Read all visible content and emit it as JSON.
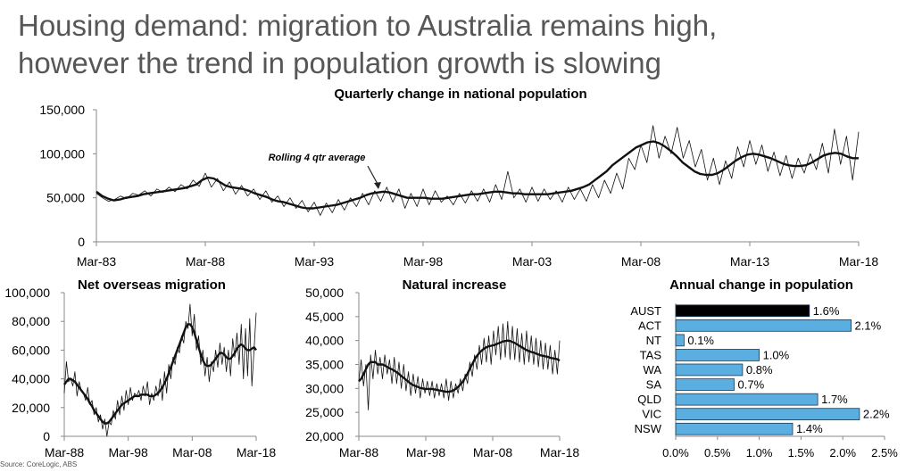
{
  "headline": {
    "line1": "Housing demand: migration to Australia remains high,",
    "line2": "however the trend in population growth is slowing"
  },
  "source": "Source:  CoreLogic, ABS",
  "chart_data": [
    {
      "type": "line",
      "title": "Quarterly change in national population",
      "annotation": "Rolling 4 qtr average",
      "x_tick_labels": [
        "Mar-83",
        "Mar-88",
        "Mar-93",
        "Mar-98",
        "Mar-03",
        "Mar-08",
        "Mar-13",
        "Mar-18"
      ],
      "y_tick_labels": [
        "0",
        "50,000",
        "100,000",
        "150,000"
      ],
      "ylim": [
        0,
        150000
      ],
      "x_range": [
        "Mar-83",
        "Mar-18"
      ],
      "series": [
        {
          "values": [
            55000,
            50000,
            46000,
            48000,
            52000,
            49000,
            55000,
            53000,
            58000,
            52000,
            60000,
            56000,
            62000,
            57000,
            65000,
            60000,
            70000,
            63000,
            78000,
            62000,
            72000,
            58000,
            68000,
            54000,
            64000,
            52000,
            60000,
            48000,
            58000,
            45000,
            52000,
            40000,
            50000,
            38000,
            47000,
            34000,
            45000,
            30000,
            44000,
            33000,
            48000,
            36000,
            50000,
            40000,
            55000,
            42000,
            58000,
            46000,
            62000,
            45000,
            60000,
            38000,
            55000,
            40000,
            60000,
            42000,
            58000,
            45000,
            52000,
            42000,
            55000,
            44000,
            58000,
            46000,
            60000,
            45000,
            65000,
            48000,
            80000,
            50000,
            60000,
            45000,
            62000,
            46000,
            60000,
            48000,
            58000,
            45000,
            62000,
            48000,
            60000,
            46000,
            65000,
            50000,
            70000,
            55000,
            78000,
            60000,
            95000,
            82000,
            110000,
            90000,
            132000,
            95000,
            120000,
            100000,
            130000,
            95000,
            115000,
            85000,
            105000,
            70000,
            95000,
            65000,
            92000,
            72000,
            108000,
            85000,
            115000,
            88000,
            110000,
            80000,
            102000,
            75000,
            98000,
            72000,
            95000,
            78000,
            100000,
            82000,
            112000,
            78000,
            128000,
            88000,
            120000,
            70000,
            125000
          ]
        },
        {
          "values": [
            57000,
            52000,
            49000,
            47000,
            48000,
            50000,
            51000,
            52000,
            54000,
            55000,
            56000,
            57000,
            58000,
            59000,
            60000,
            61000,
            63000,
            65000,
            70000,
            73000,
            72000,
            68000,
            64000,
            62000,
            61000,
            60000,
            58000,
            55000,
            53000,
            51000,
            48000,
            46000,
            45000,
            43000,
            41000,
            39000,
            38000,
            38000,
            39000,
            40000,
            41000,
            42000,
            44000,
            46000,
            48000,
            50000,
            53000,
            55000,
            56000,
            57000,
            56000,
            54000,
            52000,
            50000,
            50000,
            50000,
            50000,
            49000,
            49000,
            49000,
            50000,
            51000,
            52000,
            53000,
            54000,
            54000,
            55000,
            56000,
            57000,
            57000,
            56000,
            55000,
            55000,
            54000,
            54000,
            54000,
            54000,
            54000,
            55000,
            56000,
            57000,
            58000,
            60000,
            62000,
            65000,
            70000,
            75000,
            80000,
            87000,
            92000,
            97000,
            102000,
            107000,
            110000,
            113000,
            114000,
            112000,
            108000,
            103000,
            97000,
            90000,
            85000,
            80000,
            77000,
            76000,
            76000,
            78000,
            82000,
            87000,
            92000,
            96000,
            99000,
            100000,
            99000,
            97000,
            95000,
            92000,
            89000,
            87000,
            86000,
            86000,
            87000,
            90000,
            94000,
            98000,
            100000,
            101000,
            100000,
            97000,
            95000,
            95000
          ]
        }
      ]
    },
    {
      "type": "line",
      "title": "Net overseas migration",
      "x_tick_labels": [
        "Mar-88",
        "Mar-98",
        "Mar-08",
        "Mar-18"
      ],
      "y_tick_labels": [
        "0",
        "20,000",
        "40,000",
        "60,000",
        "80,000",
        "100,000"
      ],
      "ylim": [
        0,
        100000
      ],
      "x_range": [
        "Mar-88",
        "Mar-18"
      ],
      "series": [
        {
          "values": [
            30000,
            52000,
            38000,
            40000,
            35000,
            45000,
            28000,
            38000,
            32000,
            30000,
            25000,
            34000,
            22000,
            25000,
            15000,
            20000,
            10000,
            15000,
            5000,
            12000,
            0,
            10000,
            8000,
            18000,
            12000,
            25000,
            15000,
            28000,
            18000,
            32000,
            22000,
            34000,
            25000,
            30000,
            28000,
            32000,
            25000,
            35000,
            28000,
            38000,
            22000,
            30000,
            25000,
            35000,
            28000,
            40000,
            25000,
            45000,
            30000,
            50000,
            40000,
            55000,
            50000,
            62000,
            58000,
            70000,
            65000,
            80000,
            75000,
            92000,
            70000,
            85000,
            60000,
            70000,
            50000,
            60000,
            42000,
            55000,
            38000,
            52000,
            45000,
            60000,
            48000,
            65000,
            50000,
            62000,
            45000,
            60000,
            42000,
            68000,
            55000,
            72000,
            50000,
            78000,
            40000,
            75000,
            42000,
            82000,
            35000,
            60000,
            86000
          ]
        },
        {
          "values": [
            36000,
            38000,
            40000,
            40000,
            39000,
            38000,
            36000,
            34000,
            32000,
            30000,
            28000,
            26000,
            23000,
            21000,
            18000,
            16000,
            14000,
            12000,
            10000,
            9000,
            9000,
            10000,
            12000,
            14000,
            16000,
            18000,
            20000,
            22000,
            23000,
            24000,
            25000,
            26000,
            27000,
            28000,
            28000,
            28000,
            29000,
            29000,
            29000,
            29000,
            28000,
            28000,
            28000,
            29000,
            30000,
            32000,
            34000,
            37000,
            40000,
            44000,
            48000,
            52000,
            56000,
            60000,
            64000,
            68000,
            72000,
            76000,
            78000,
            78000,
            76000,
            72000,
            67000,
            62000,
            57000,
            53000,
            50000,
            49000,
            49000,
            50000,
            52000,
            54000,
            56000,
            58000,
            58000,
            57000,
            55000,
            54000,
            54000,
            56000,
            58000,
            61000,
            63000,
            64000,
            63000,
            61000,
            60000,
            60000,
            61000,
            62000,
            60000
          ]
        }
      ]
    },
    {
      "type": "line",
      "title": "Natural increase",
      "x_tick_labels": [
        "Mar-88",
        "Mar-98",
        "Mar-08",
        "Mar-18"
      ],
      "y_tick_labels": [
        "20,000",
        "25,000",
        "30,000",
        "35,000",
        "40,000",
        "45,000",
        "50,000"
      ],
      "ylim": [
        20000,
        50000
      ],
      "x_range": [
        "Mar-88",
        "Mar-18"
      ],
      "series": [
        {
          "values": [
            31500,
            36000,
            30500,
            35000,
            25500,
            37000,
            32000,
            38000,
            33000,
            36500,
            32000,
            37000,
            33000,
            36000,
            31000,
            36500,
            31000,
            35500,
            30000,
            35000,
            29500,
            33500,
            28500,
            33000,
            29000,
            32500,
            28000,
            32000,
            29000,
            31500,
            28500,
            31500,
            28000,
            31000,
            28500,
            31000,
            28000,
            32000,
            27500,
            31500,
            28000,
            31000,
            29000,
            32000,
            29500,
            33000,
            31000,
            35500,
            32500,
            37000,
            34000,
            39000,
            35000,
            40500,
            35500,
            41000,
            35000,
            42000,
            37000,
            43000,
            36000,
            43500,
            36500,
            44000,
            36000,
            43000,
            36000,
            42500,
            35500,
            41500,
            35000,
            42000,
            35500,
            41000,
            35000,
            40500,
            34500,
            40000,
            34000,
            39500,
            34000,
            39000,
            33000,
            38000,
            33000,
            40000
          ]
        },
        {
          "values": [
            31500,
            32000,
            33000,
            34000,
            35000,
            35500,
            35500,
            35500,
            35000,
            35000,
            35000,
            34800,
            34500,
            34200,
            34000,
            33700,
            33400,
            33000,
            32600,
            32200,
            31800,
            31400,
            31000,
            30700,
            30500,
            30300,
            30100,
            30000,
            29900,
            29900,
            29900,
            29900,
            29800,
            29700,
            29600,
            29500,
            29400,
            29300,
            29300,
            29400,
            29600,
            29900,
            30300,
            30800,
            31400,
            32200,
            33100,
            34100,
            35100,
            36000,
            36800,
            37400,
            37900,
            38300,
            38600,
            38800,
            38900,
            39000,
            39200,
            39400,
            39600,
            39800,
            39900,
            40000,
            39900,
            39700,
            39500,
            39200,
            38900,
            38600,
            38300,
            38000,
            37800,
            37600,
            37500,
            37300,
            37100,
            36900,
            36800,
            36700,
            36600,
            36400,
            36300,
            36200,
            36100,
            35800
          ]
        }
      ]
    },
    {
      "type": "bar",
      "orientation": "horizontal",
      "title": "Annual change in population",
      "categories": [
        "AUST",
        "ACT",
        "NT",
        "TAS",
        "WA",
        "SA",
        "QLD",
        "VIC",
        "NSW"
      ],
      "values": [
        1.6,
        2.1,
        0.1,
        1.0,
        0.8,
        0.7,
        1.7,
        2.2,
        1.4
      ],
      "value_labels": [
        "1.6%",
        "2.1%",
        "0.1%",
        "1.0%",
        "0.8%",
        "0.7%",
        "1.7%",
        "2.2%",
        "1.4%"
      ],
      "x_tick_labels": [
        "0.0%",
        "0.5%",
        "1.0%",
        "1.5%",
        "2.0%",
        "2.5%"
      ],
      "xlim": [
        0,
        2.5
      ],
      "colors": {
        "AUST": "#000000",
        "default": "#5aaee0"
      }
    }
  ]
}
